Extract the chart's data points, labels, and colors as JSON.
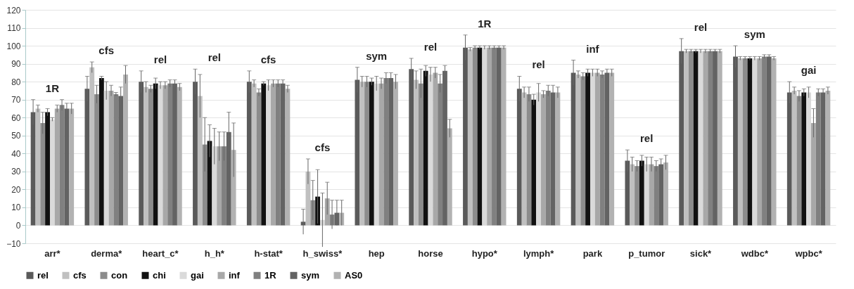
{
  "chart_data": {
    "type": "bar",
    "categories": [
      "arr*",
      "derma*",
      "heart_c*",
      "h_h*",
      "h-stat*",
      "h_swiss*",
      "hep",
      "horse",
      "hypo*",
      "lymph*",
      "park",
      "p_tumor",
      "sick*",
      "wdbc*",
      "wpbc*"
    ],
    "series": [
      {
        "name": "rel",
        "color": "#5a5a5a",
        "values": [
          63,
          76,
          80,
          80,
          80,
          2,
          81,
          87,
          99,
          76,
          85,
          36,
          97,
          94,
          74
        ],
        "errors": [
          7,
          7,
          6,
          7,
          6,
          7,
          7,
          6,
          7,
          7,
          7,
          6,
          7,
          6,
          6
        ]
      },
      {
        "name": "cfs",
        "color": "#c0c0c0",
        "values": [
          65,
          88,
          77,
          72,
          79,
          30,
          80,
          81,
          98,
          74,
          84,
          34,
          97,
          93,
          75
        ],
        "errors": [
          2,
          3,
          3,
          12,
          2,
          7,
          3,
          5,
          1,
          3,
          2,
          4,
          1,
          1,
          2
        ]
      },
      {
        "name": "con",
        "color": "#8c8c8c",
        "values": [
          57,
          73,
          76,
          45,
          74,
          14,
          80,
          79,
          99,
          73,
          83,
          33,
          97,
          93,
          72
        ],
        "errors": [
          6,
          5,
          2,
          15,
          2,
          11,
          3,
          8,
          1,
          4,
          2,
          3,
          1,
          1,
          3
        ]
      },
      {
        "name": "chi",
        "color": "#111111",
        "values": [
          63,
          82,
          79,
          47,
          79,
          16,
          80,
          86,
          99,
          70,
          85,
          36,
          97,
          93,
          74
        ],
        "errors": [
          2,
          1,
          3,
          9,
          1,
          15,
          2,
          3,
          1,
          3,
          2,
          3,
          1,
          1,
          2
        ]
      },
      {
        "name": "gai",
        "color": "#dadada",
        "values": [
          59,
          75,
          78,
          44,
          78,
          3,
          79,
          84,
          99,
          74,
          85,
          34,
          97,
          93,
          74
        ],
        "errors": [
          1,
          5,
          2,
          10,
          3,
          15,
          4,
          4,
          1,
          5,
          2,
          4,
          1,
          1,
          3
        ]
      },
      {
        "name": "inf",
        "color": "#a8a8a8",
        "values": [
          65,
          75,
          78,
          44,
          79,
          15,
          79,
          85,
          99,
          73,
          85,
          34,
          97,
          93,
          57
        ],
        "errors": [
          2,
          3,
          2,
          8,
          2,
          9,
          3,
          3,
          1,
          2,
          2,
          4,
          1,
          1,
          8
        ]
      },
      {
        "name": "1R",
        "color": "#808080",
        "values": [
          67,
          73,
          79,
          44,
          79,
          6,
          82,
          79,
          99,
          75,
          84,
          33,
          97,
          94,
          74
        ],
        "errors": [
          3,
          1,
          2,
          8,
          2,
          8,
          3,
          5,
          1,
          3,
          2,
          3,
          1,
          1,
          2
        ]
      },
      {
        "name": "sym",
        "color": "#636363",
        "values": [
          65,
          72,
          79,
          52,
          79,
          7,
          82,
          86,
          99,
          74,
          85,
          34,
          97,
          94,
          74
        ],
        "errors": [
          3,
          5,
          2,
          11,
          2,
          7,
          3,
          3,
          1,
          4,
          2,
          3,
          1,
          1,
          2
        ]
      },
      {
        "name": "AS0",
        "color": "#b2b2b2",
        "values": [
          65,
          84,
          77,
          42,
          76,
          7,
          80,
          54,
          99,
          74,
          85,
          35,
          97,
          93,
          75
        ],
        "errors": [
          3,
          5,
          2,
          15,
          2,
          7,
          4,
          5,
          1,
          3,
          2,
          4,
          1,
          1,
          2
        ]
      }
    ],
    "ylim": [
      -10,
      120
    ],
    "yticks": [
      -10,
      0,
      10,
      20,
      30,
      40,
      50,
      60,
      70,
      80,
      90,
      100,
      110,
      120
    ],
    "grid": "y",
    "legend": "bottom",
    "annotations": [
      "1R",
      "cfs",
      "rel",
      "rel",
      "cfs",
      "cfs",
      "sym",
      "rel",
      "1R",
      "rel",
      "inf",
      "rel",
      "rel",
      "sym",
      "gai"
    ]
  }
}
